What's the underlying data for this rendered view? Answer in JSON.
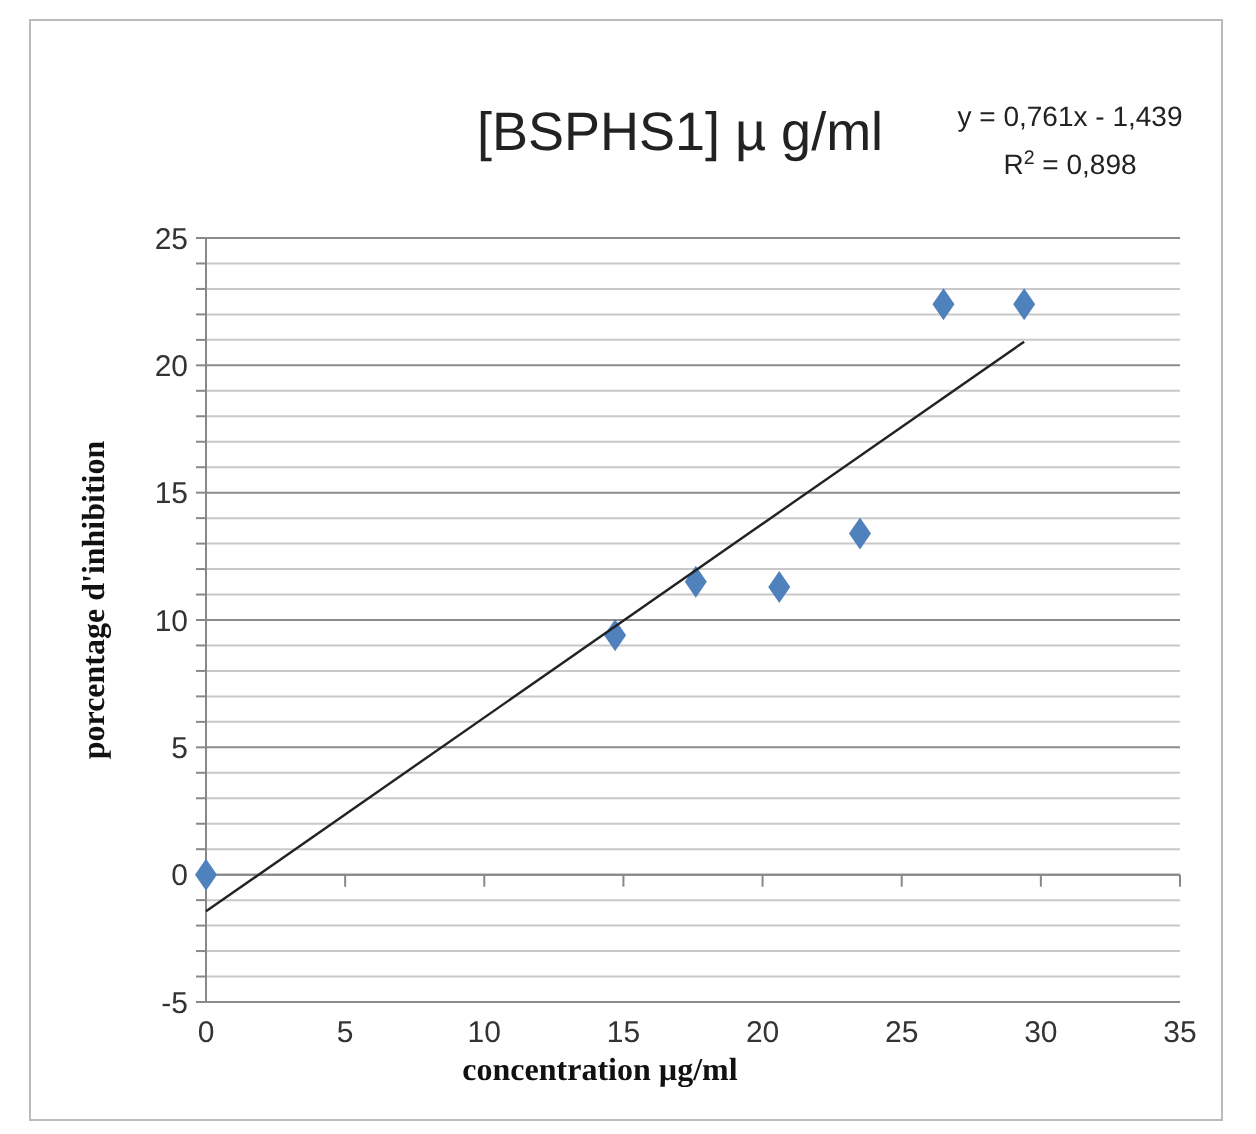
{
  "chart_data": {
    "type": "scatter",
    "title": "[BSPHS1] µ g/ml",
    "xlabel": "concentration µg/ml",
    "ylabel": "porcentage d'inhibition",
    "annotations": [
      "y = 0,761x - 1,439",
      "R$^{2}$ = 0,898"
    ],
    "xlim": [
      0,
      35
    ],
    "xticks": [
      0,
      5,
      10,
      15,
      20,
      25,
      30,
      35
    ],
    "ylim": [
      -5,
      25
    ],
    "yticks": [
      -5,
      {
        "value": -4,
        "label": null
      },
      {
        "value": -3,
        "label": null
      },
      {
        "value": -2,
        "label": null
      },
      {
        "value": -1,
        "label": null
      },
      0,
      {
        "value": 1,
        "label": null
      },
      {
        "value": 2,
        "label": null
      },
      {
        "value": 3,
        "label": null
      },
      {
        "value": 4,
        "label": null
      },
      5,
      {
        "value": 6,
        "label": null
      },
      {
        "value": 7,
        "label": null
      },
      {
        "value": 8,
        "label": null
      },
      {
        "value": 9,
        "label": null
      },
      10,
      {
        "value": 11,
        "label": null
      },
      {
        "value": 12,
        "label": null
      },
      {
        "value": 13,
        "label": null
      },
      {
        "value": 14,
        "label": null
      },
      15,
      {
        "value": 16,
        "label": null
      },
      {
        "value": 17,
        "label": null
      },
      {
        "value": 18,
        "label": null
      },
      {
        "value": 19,
        "label": null
      },
      20,
      {
        "value": 21,
        "label": null
      },
      {
        "value": 22,
        "label": null
      },
      {
        "value": 23,
        "label": null
      },
      {
        "value": 24,
        "label": null
      },
      25
    ],
    "grid": "y",
    "marker": "diamond",
    "series": [
      {
        "color": "#4f81bd",
        "x": [
          0,
          14.7,
          17.6,
          20.6,
          23.5,
          26.5,
          29.4
        ],
        "values": [
          0,
          9.4,
          11.5,
          11.3,
          13.4,
          22.4,
          22.4
        ]
      },
      {
        "type": "line",
        "color": "#222222",
        "marker": "none",
        "line_style": "solid",
        "x": [
          0,
          29.4
        ],
        "values": [
          -1.44,
          20.93
        ]
      }
    ]
  }
}
